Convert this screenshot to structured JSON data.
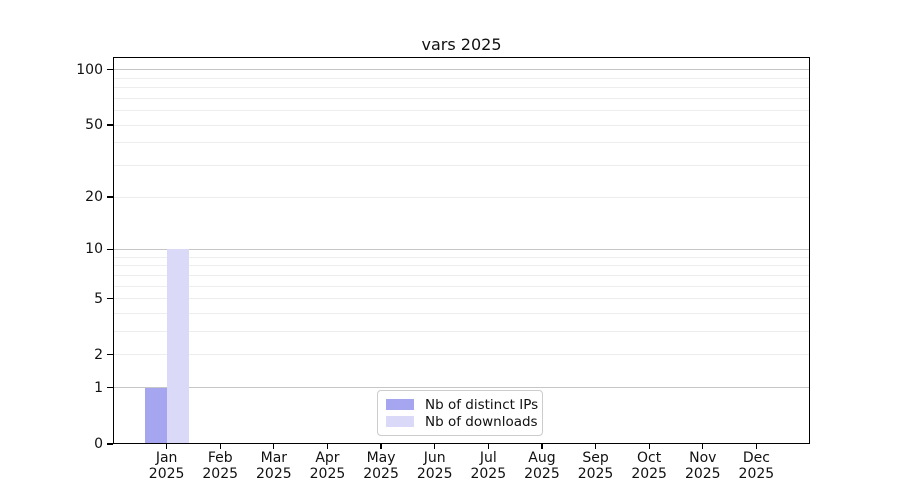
{
  "chart_data": {
    "type": "bar",
    "title": "vars 2025",
    "categories": [
      {
        "month": "Jan",
        "year": "2025"
      },
      {
        "month": "Feb",
        "year": "2025"
      },
      {
        "month": "Mar",
        "year": "2025"
      },
      {
        "month": "Apr",
        "year": "2025"
      },
      {
        "month": "May",
        "year": "2025"
      },
      {
        "month": "Jun",
        "year": "2025"
      },
      {
        "month": "Jul",
        "year": "2025"
      },
      {
        "month": "Aug",
        "year": "2025"
      },
      {
        "month": "Sep",
        "year": "2025"
      },
      {
        "month": "Oct",
        "year": "2025"
      },
      {
        "month": "Nov",
        "year": "2025"
      },
      {
        "month": "Dec",
        "year": "2025"
      }
    ],
    "series": [
      {
        "name": "Nb of distinct IPs",
        "color": "#a6a6f0",
        "values": [
          1,
          0,
          0,
          0,
          0,
          0,
          0,
          0,
          0,
          0,
          0,
          0
        ]
      },
      {
        "name": "Nb of downloads",
        "color": "#dadaf8",
        "values": [
          10,
          0,
          0,
          0,
          0,
          0,
          0,
          0,
          0,
          0,
          0,
          0
        ]
      }
    ],
    "y_axis": {
      "scale": "log10(value+1)",
      "ticks": [
        0,
        1,
        2,
        5,
        10,
        20,
        50,
        100
      ],
      "display_max": 117,
      "major_gridlines": [
        1,
        10,
        100
      ],
      "minor_gridlines": [
        2,
        3,
        4,
        5,
        6,
        7,
        8,
        9,
        20,
        30,
        40,
        50,
        60,
        70,
        80,
        90
      ]
    },
    "legend": {
      "position": "lower center"
    },
    "grid": "on",
    "xlabel": "",
    "ylabel": ""
  },
  "colors": {
    "major_grid": "#c6c6c6",
    "minor_grid": "#ededed",
    "axis": "#000000",
    "text": "#111111",
    "background": "#ffffff"
  }
}
